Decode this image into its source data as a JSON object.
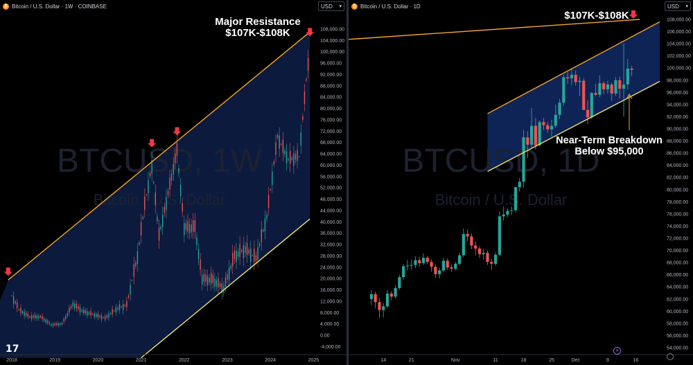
{
  "left_panel": {
    "header": "Bitcoin / U.S. Dollar · 1W · COINBASE",
    "currency": "USD",
    "watermark_symbol": "BTCUSD, 1W",
    "watermark_name": "Bitcoin / U.S. Dollar",
    "annotation_line1": "Major Resistance",
    "annotation_line2": "$107K-$108K"
  },
  "right_panel": {
    "header": "Bitcoin / U.S. Dollar · 1D",
    "currency": "USD",
    "watermark_symbol": "BTCUSD, 1D",
    "watermark_name": "Bitcoin / U.S. Dollar",
    "annotation_top": "$107K-$108K",
    "annotation_line1": "Near-Term Breakdown",
    "annotation_line2": "Below $95,000"
  },
  "colors": {
    "background": "#000000",
    "channel_fill": "#0c1a3d",
    "resistance_line": "#f7a531",
    "support_line": "#f5e663",
    "up_candle": "#26a69a",
    "down_candle": "#ef5350",
    "arrow": "#f23645"
  },
  "icons": [
    "bitcoin-icon",
    "chevron-down-icon",
    "tradingview-logo-icon",
    "settings-icon",
    "add-icon",
    "down-arrow-icon"
  ],
  "chart_data": [
    {
      "type": "candlestick",
      "timeframe": "1W",
      "x_ticks": [
        "2018",
        "2019",
        "2020",
        "2021",
        "2022",
        "2023",
        "2024",
        "2025"
      ],
      "y_ticks": [
        "108,000.00",
        "104,000.00",
        "100,000.00",
        "96,000.00",
        "92,000.00",
        "88,000.00",
        "84,000.00",
        "80,000.00",
        "76,000.00",
        "72,000.00",
        "68,000.00",
        "64,000.00",
        "60,000.00",
        "56,000.00",
        "52,000.00",
        "48,000.00",
        "44,000.00",
        "40,000.00",
        "36,000.00",
        "32,000.00",
        "28,000.00",
        "24,000.00",
        "20,000.00",
        "16,000.00",
        "12,000.00",
        "8,000.00",
        "4,000.00",
        "0.00",
        "-4,000.00"
      ],
      "ylim": [
        -4000,
        108000
      ],
      "close_series": [
        {
          "date": "2018-01",
          "close": 14000
        },
        {
          "date": "2018-03",
          "close": 9000
        },
        {
          "date": "2018-06",
          "close": 6500
        },
        {
          "date": "2018-09",
          "close": 6500
        },
        {
          "date": "2018-12",
          "close": 3700
        },
        {
          "date": "2019-03",
          "close": 4000
        },
        {
          "date": "2019-06",
          "close": 11000
        },
        {
          "date": "2019-09",
          "close": 8300
        },
        {
          "date": "2019-12",
          "close": 7200
        },
        {
          "date": "2020-03",
          "close": 6000
        },
        {
          "date": "2020-06",
          "close": 9200
        },
        {
          "date": "2020-09",
          "close": 10700
        },
        {
          "date": "2020-12",
          "close": 28000
        },
        {
          "date": "2021-02",
          "close": 46000
        },
        {
          "date": "2021-04",
          "close": 60000
        },
        {
          "date": "2021-06",
          "close": 35000
        },
        {
          "date": "2021-08",
          "close": 47000
        },
        {
          "date": "2021-11",
          "close": 65000
        },
        {
          "date": "2022-01",
          "close": 38000
        },
        {
          "date": "2022-04",
          "close": 38000
        },
        {
          "date": "2022-06",
          "close": 20000
        },
        {
          "date": "2022-09",
          "close": 19500
        },
        {
          "date": "2022-12",
          "close": 16500
        },
        {
          "date": "2023-03",
          "close": 28000
        },
        {
          "date": "2023-06",
          "close": 30500
        },
        {
          "date": "2023-09",
          "close": 27000
        },
        {
          "date": "2023-12",
          "close": 42000
        },
        {
          "date": "2024-03",
          "close": 70000
        },
        {
          "date": "2024-06",
          "close": 62000
        },
        {
          "date": "2024-09",
          "close": 63000
        },
        {
          "date": "2024-11",
          "close": 90000
        },
        {
          "date": "2024-12",
          "close": 100000
        }
      ],
      "marked_peaks": [
        {
          "date": "2017-12",
          "value": 19500
        },
        {
          "date": "2021-04",
          "value": 64800
        },
        {
          "date": "2021-11",
          "value": 69000
        },
        {
          "date": "2024-12",
          "value": 104000
        }
      ],
      "resistance_line": [
        {
          "date": "2017-12",
          "value": 19500
        },
        {
          "date": "2024-12",
          "value": 107000
        }
      ],
      "support_line": [
        {
          "date": "2021-01",
          "value": -8000
        },
        {
          "date": "2024-12",
          "value": 41000
        }
      ]
    },
    {
      "type": "candlestick",
      "timeframe": "1D",
      "x_ticks": [
        "14",
        "21",
        "Nov",
        "11",
        "18",
        "25",
        "Dec",
        "9",
        "16"
      ],
      "y_ticks": [
        "108,000.00",
        "106,000.00",
        "104,000.00",
        "102,000.00",
        "100,000.00",
        "98,000.00",
        "96,000.00",
        "94,000.00",
        "92,000.00",
        "90,000.00",
        "88,000.00",
        "86,000.00",
        "84,000.00",
        "82,000.00",
        "80,000.00",
        "78,000.00",
        "76,000.00",
        "74,000.00",
        "72,000.00",
        "70,000.00",
        "68,000.00",
        "66,000.00",
        "64,000.00",
        "62,000.00",
        "60,000.00",
        "58,000.00",
        "56,000.00",
        "54,000.00"
      ],
      "ylim": [
        53000,
        108600
      ],
      "x_range_days_from_oct6": [
        0,
        72
      ],
      "candles": [
        {
          "day": 5,
          "open": 62000,
          "high": 63500,
          "low": 61000,
          "close": 62800
        },
        {
          "day": 6,
          "open": 62800,
          "high": 63200,
          "low": 60500,
          "close": 61500
        },
        {
          "day": 7,
          "open": 61500,
          "high": 62100,
          "low": 58900,
          "close": 60200
        },
        {
          "day": 8,
          "open": 60200,
          "high": 61300,
          "low": 59000,
          "close": 60800
        },
        {
          "day": 9,
          "open": 60800,
          "high": 63500,
          "low": 60500,
          "close": 62900
        },
        {
          "day": 10,
          "open": 62900,
          "high": 63300,
          "low": 61800,
          "close": 62400
        },
        {
          "day": 11,
          "open": 62400,
          "high": 64300,
          "low": 62100,
          "close": 63800
        },
        {
          "day": 12,
          "open": 63800,
          "high": 66000,
          "low": 63500,
          "close": 65600
        },
        {
          "day": 13,
          "open": 65600,
          "high": 67800,
          "low": 65200,
          "close": 67400
        },
        {
          "day": 14,
          "open": 67400,
          "high": 68400,
          "low": 66700,
          "close": 67500
        },
        {
          "day": 15,
          "open": 67500,
          "high": 68500,
          "low": 66800,
          "close": 67600
        },
        {
          "day": 16,
          "open": 67600,
          "high": 69000,
          "low": 67100,
          "close": 68400
        },
        {
          "day": 17,
          "open": 68400,
          "high": 68900,
          "low": 67300,
          "close": 67900
        },
        {
          "day": 18,
          "open": 67900,
          "high": 69500,
          "low": 67600,
          "close": 68800
        },
        {
          "day": 19,
          "open": 68800,
          "high": 69100,
          "low": 67700,
          "close": 68100
        },
        {
          "day": 20,
          "open": 68100,
          "high": 68500,
          "low": 66500,
          "close": 67300
        },
        {
          "day": 21,
          "open": 67300,
          "high": 67700,
          "low": 65500,
          "close": 66100
        },
        {
          "day": 22,
          "open": 66100,
          "high": 67200,
          "low": 65400,
          "close": 66700
        },
        {
          "day": 23,
          "open": 66700,
          "high": 68800,
          "low": 66400,
          "close": 68300
        },
        {
          "day": 24,
          "open": 68300,
          "high": 68700,
          "low": 66800,
          "close": 67200
        },
        {
          "day": 25,
          "open": 67200,
          "high": 67700,
          "low": 66500,
          "close": 67000
        },
        {
          "day": 26,
          "open": 67000,
          "high": 68100,
          "low": 66700,
          "close": 67800
        },
        {
          "day": 27,
          "open": 67800,
          "high": 69600,
          "low": 67500,
          "close": 69200
        },
        {
          "day": 28,
          "open": 69200,
          "high": 73600,
          "low": 68900,
          "close": 72700
        },
        {
          "day": 29,
          "open": 72700,
          "high": 73500,
          "low": 71500,
          "close": 72300
        },
        {
          "day": 30,
          "open": 72300,
          "high": 72800,
          "low": 70200,
          "close": 70800
        },
        {
          "day": 31,
          "open": 70800,
          "high": 71500,
          "low": 69200,
          "close": 70300
        },
        {
          "day": 32,
          "open": 70300,
          "high": 70700,
          "low": 68800,
          "close": 69400
        },
        {
          "day": 33,
          "open": 69400,
          "high": 70200,
          "low": 68500,
          "close": 69600
        },
        {
          "day": 34,
          "open": 69600,
          "high": 70000,
          "low": 67600,
          "close": 68100
        },
        {
          "day": 35,
          "open": 68100,
          "high": 68600,
          "low": 66800,
          "close": 67800
        },
        {
          "day": 36,
          "open": 67800,
          "high": 69700,
          "low": 67500,
          "close": 69300
        },
        {
          "day": 37,
          "open": 69300,
          "high": 76400,
          "low": 69000,
          "close": 75600
        },
        {
          "day": 38,
          "open": 75600,
          "high": 77200,
          "low": 74900,
          "close": 75900
        },
        {
          "day": 39,
          "open": 75900,
          "high": 76900,
          "low": 75500,
          "close": 76500
        },
        {
          "day": 40,
          "open": 76500,
          "high": 77200,
          "low": 75800,
          "close": 76600
        },
        {
          "day": 41,
          "open": 76600,
          "high": 80500,
          "low": 76300,
          "close": 80400
        },
        {
          "day": 42,
          "open": 80400,
          "high": 81900,
          "low": 79700,
          "close": 81300
        },
        {
          "day": 43,
          "open": 81300,
          "high": 89800,
          "low": 80300,
          "close": 88600
        },
        {
          "day": 44,
          "open": 88600,
          "high": 89600,
          "low": 85200,
          "close": 87400
        },
        {
          "day": 45,
          "open": 87400,
          "high": 93400,
          "low": 86900,
          "close": 90500
        },
        {
          "day": 46,
          "open": 90500,
          "high": 91800,
          "low": 86600,
          "close": 87300
        },
        {
          "day": 47,
          "open": 87300,
          "high": 91400,
          "low": 87100,
          "close": 91100
        },
        {
          "day": 48,
          "open": 91100,
          "high": 91800,
          "low": 89800,
          "close": 90600
        },
        {
          "day": 49,
          "open": 90600,
          "high": 91100,
          "low": 89400,
          "close": 89900
        },
        {
          "day": 50,
          "open": 89900,
          "high": 91500,
          "low": 88700,
          "close": 90500
        },
        {
          "day": 51,
          "open": 90500,
          "high": 94000,
          "low": 90200,
          "close": 92300
        },
        {
          "day": 52,
          "open": 92300,
          "high": 94900,
          "low": 91600,
          "close": 94300
        },
        {
          "day": 53,
          "open": 94300,
          "high": 98900,
          "low": 93800,
          "close": 98500
        },
        {
          "day": 54,
          "open": 98500,
          "high": 99300,
          "low": 97400,
          "close": 98300
        },
        {
          "day": 55,
          "open": 98300,
          "high": 99800,
          "low": 97200,
          "close": 98900
        },
        {
          "day": 56,
          "open": 98900,
          "high": 99600,
          "low": 97100,
          "close": 97700
        },
        {
          "day": 57,
          "open": 97700,
          "high": 98600,
          "low": 95400,
          "close": 97900
        },
        {
          "day": 58,
          "open": 97900,
          "high": 98300,
          "low": 93200,
          "close": 93100
        },
        {
          "day": 59,
          "open": 93100,
          "high": 94700,
          "low": 90800,
          "close": 91900
        },
        {
          "day": 60,
          "open": 91900,
          "high": 96000,
          "low": 91600,
          "close": 95900
        },
        {
          "day": 61,
          "open": 95900,
          "high": 97400,
          "low": 95400,
          "close": 95600
        },
        {
          "day": 62,
          "open": 95600,
          "high": 98800,
          "low": 95200,
          "close": 97500
        },
        {
          "day": 63,
          "open": 97500,
          "high": 97800,
          "low": 95700,
          "close": 96500
        },
        {
          "day": 64,
          "open": 96500,
          "high": 97900,
          "low": 95800,
          "close": 97300
        },
        {
          "day": 65,
          "open": 97300,
          "high": 97600,
          "low": 94600,
          "close": 95800
        },
        {
          "day": 66,
          "open": 95800,
          "high": 98500,
          "low": 95400,
          "close": 98000
        },
        {
          "day": 67,
          "open": 98000,
          "high": 98600,
          "low": 95000,
          "close": 96600
        },
        {
          "day": 68,
          "open": 96600,
          "high": 104000,
          "low": 92000,
          "close": 97300
        },
        {
          "day": 69,
          "open": 97300,
          "high": 101500,
          "low": 96500,
          "close": 99900
        },
        {
          "day": 70,
          "open": 99900,
          "high": 100400,
          "low": 98700,
          "close": 99700
        }
      ],
      "resistance_line": [
        {
          "day": -1,
          "value": 104700
        },
        {
          "day": 72,
          "value": 108000
        }
      ],
      "channel_upper": [
        {
          "day": 34,
          "value": 92500
        },
        {
          "day": 77,
          "value": 107600
        }
      ],
      "channel_lower": [
        {
          "day": 34,
          "value": 83000
        },
        {
          "day": 77,
          "value": 97800
        }
      ]
    }
  ]
}
